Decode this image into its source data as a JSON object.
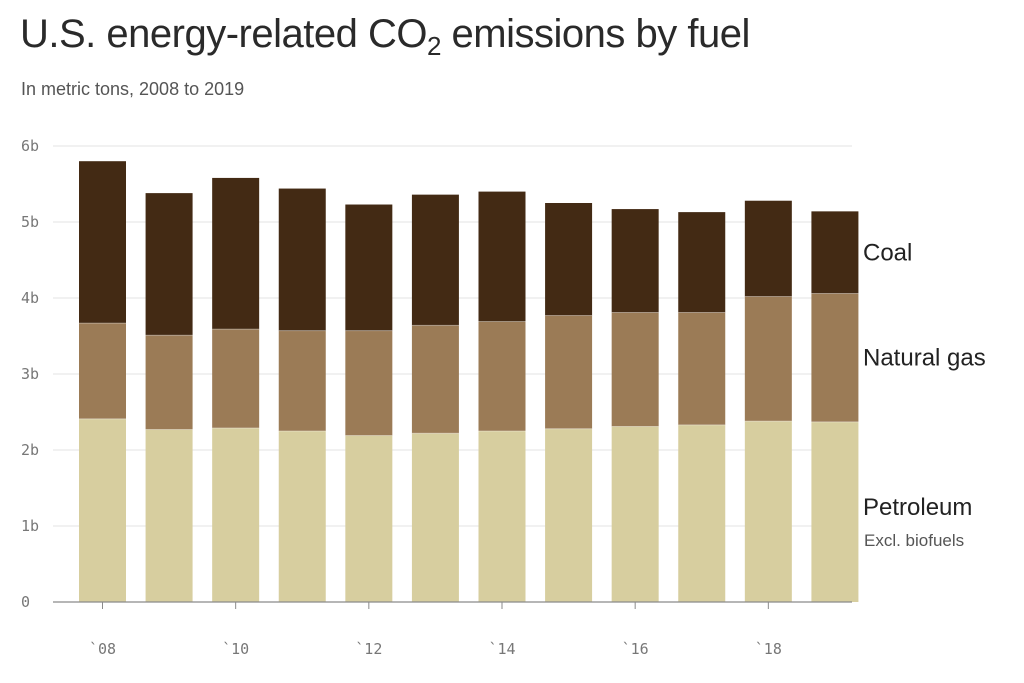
{
  "header": {
    "title_main": "U.S. energy-related CO",
    "title_sub": "2",
    "title_end": " emissions by fuel",
    "subtitle": "In metric tons, 2008 to 2019"
  },
  "chart_data": {
    "type": "bar",
    "stacked": true,
    "title": "U.S. energy-related CO2 emissions by fuel",
    "subtitle": "In metric tons, 2008 to 2019",
    "categories": [
      "2008",
      "2009",
      "2010",
      "2011",
      "2012",
      "2013",
      "2014",
      "2015",
      "2016",
      "2017",
      "2018",
      "2019"
    ],
    "series": [
      {
        "name": "Petroleum",
        "note": "Excl. biofuels",
        "color": "#d7ce9f",
        "values": [
          2.41,
          2.27,
          2.29,
          2.25,
          2.19,
          2.22,
          2.25,
          2.28,
          2.31,
          2.33,
          2.38,
          2.37
        ]
      },
      {
        "name": "Natural gas",
        "color": "#9b7b56",
        "values": [
          1.26,
          1.24,
          1.3,
          1.32,
          1.38,
          1.42,
          1.44,
          1.49,
          1.5,
          1.48,
          1.64,
          1.69
        ]
      },
      {
        "name": "Coal",
        "color": "#432a14",
        "values": [
          2.13,
          1.87,
          1.99,
          1.87,
          1.66,
          1.72,
          1.71,
          1.48,
          1.36,
          1.32,
          1.26,
          1.08
        ]
      }
    ],
    "ylim": [
      0,
      6
    ],
    "yticks": [
      0,
      1,
      2,
      3,
      4,
      5,
      6
    ],
    "ytick_labels": [
      "0",
      "1b",
      "2b",
      "3b",
      "4b",
      "5b",
      "6b"
    ],
    "xtick_labels": [
      "`08",
      "",
      "`10",
      "",
      "`12",
      "",
      "`14",
      "",
      "`16",
      "",
      "`18",
      ""
    ],
    "grid": true,
    "legend": "right, inline labels"
  }
}
